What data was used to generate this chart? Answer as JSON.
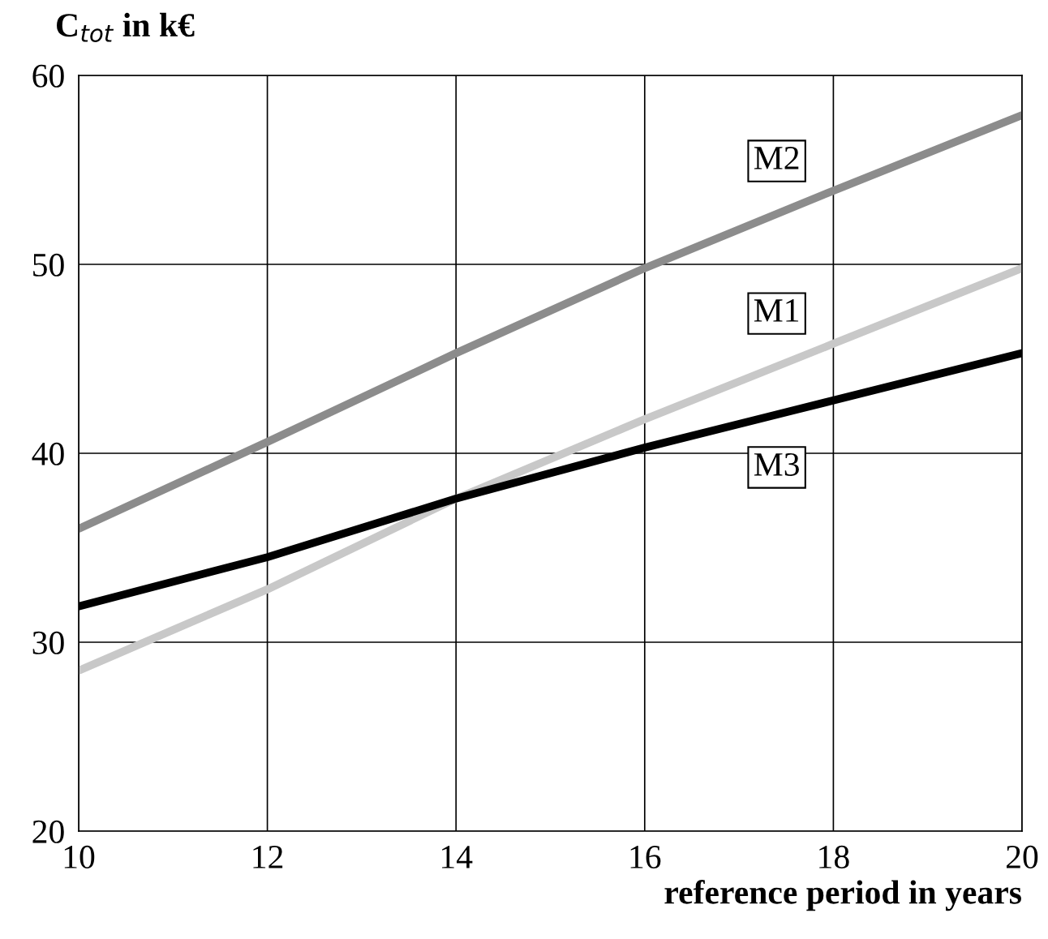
{
  "chart_data": {
    "type": "line",
    "xlabel": "reference period in years",
    "ylabel": "C$_{tot}$ in k€",
    "x": [
      10,
      12,
      14,
      16,
      18,
      20
    ],
    "series": [
      {
        "name": "M2",
        "color": "#8c8c8c",
        "values": [
          36.0,
          40.6,
          45.3,
          49.8,
          53.9,
          57.9
        ]
      },
      {
        "name": "M1",
        "color": "#c8c8c8",
        "values": [
          28.5,
          32.8,
          37.6,
          41.8,
          45.8,
          49.8
        ]
      },
      {
        "name": "M3",
        "color": "#000000",
        "values": [
          31.9,
          34.5,
          37.6,
          40.3,
          42.8,
          45.3
        ]
      }
    ],
    "xlim": [
      10,
      20
    ],
    "ylim": [
      20,
      60
    ],
    "xticks": [
      10,
      12,
      14,
      16,
      18,
      20
    ],
    "yticks": [
      20,
      30,
      40,
      50,
      60
    ],
    "grid": true,
    "legend": false,
    "marker": "none",
    "line_style": "solid"
  }
}
